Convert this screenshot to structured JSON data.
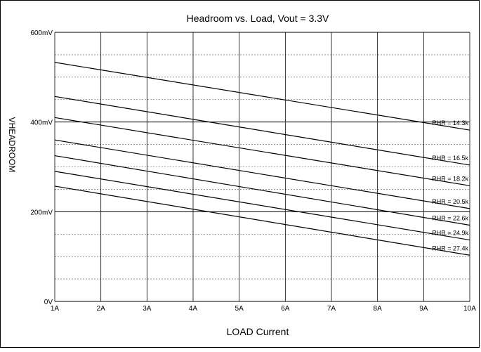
{
  "chart_data": {
    "type": "line",
    "title": "Headroom vs. Load, Vout = 3.3V",
    "xlabel": "LOAD Current",
    "ylabel": "VHEADROOM",
    "x": [
      1,
      10
    ],
    "x_tick_labels": [
      "1A",
      "2A",
      "3A",
      "4A",
      "5A",
      "6A",
      "7A",
      "8A",
      "9A",
      "10A"
    ],
    "y_tick_values": [
      0,
      200,
      400,
      600
    ],
    "y_tick_labels": [
      "0V",
      "200mV",
      "400mV",
      "600mV"
    ],
    "ylim": [
      0,
      600
    ],
    "xlim": [
      1,
      10
    ],
    "grid": true,
    "series": [
      {
        "name": "RHR = 14.3k",
        "values": [
          533,
          382
        ]
      },
      {
        "name": "RHR = 16.5k",
        "values": [
          457,
          304
        ]
      },
      {
        "name": "RHR = 18.2k",
        "values": [
          410,
          258
        ]
      },
      {
        "name": "RHR = 20.5k",
        "values": [
          360,
          207
        ]
      },
      {
        "name": "RHR = 22.6k",
        "values": [
          325,
          170
        ]
      },
      {
        "name": "RHR = 24.9k",
        "values": [
          290,
          137
        ]
      },
      {
        "name": "RHR = 27.4k",
        "values": [
          257,
          103
        ]
      }
    ]
  }
}
